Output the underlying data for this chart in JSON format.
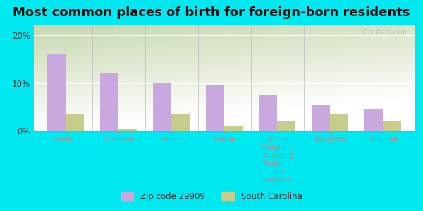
{
  "title": "Most common places of birth for foreign-born residents",
  "categories": [
    "Sweden",
    "Denmark",
    "France",
    "Taiwan",
    "United\nKingdom,\nexcluding\nEngland\nand\nScotland",
    "Malaysia",
    "Thailand"
  ],
  "zip_values": [
    16.0,
    12.0,
    10.0,
    9.5,
    7.5,
    5.5,
    4.5
  ],
  "sc_values": [
    3.5,
    0.5,
    3.5,
    1.0,
    2.0,
    3.5,
    2.0
  ],
  "zip_color": "#c9a8e0",
  "sc_color": "#c8cc8a",
  "bar_width": 0.35,
  "ylim": [
    0,
    22
  ],
  "yticks": [
    0,
    10,
    20
  ],
  "ytick_labels": [
    "0%",
    "10%",
    "20%"
  ],
  "bg_color_topleft": "#c8d8b0",
  "bg_color_topright": "#e8f0d8",
  "bg_color_bottom": "#f5f8ee",
  "figure_bg": "#00e8f0",
  "title_fontsize": 13,
  "legend_labels": [
    "Zip code 29909",
    "South Carolina"
  ],
  "watermark": "City-Data.com"
}
